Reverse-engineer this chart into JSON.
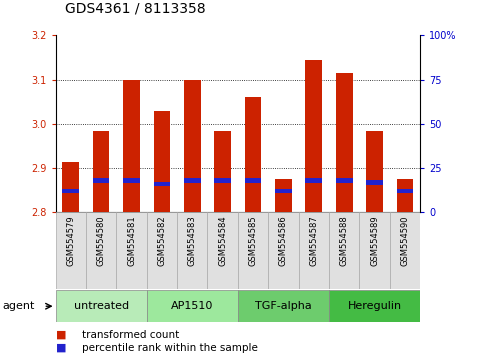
{
  "title": "GDS4361 / 8113358",
  "samples": [
    "GSM554579",
    "GSM554580",
    "GSM554581",
    "GSM554582",
    "GSM554583",
    "GSM554584",
    "GSM554585",
    "GSM554586",
    "GSM554587",
    "GSM554588",
    "GSM554589",
    "GSM554590"
  ],
  "red_values": [
    2.915,
    2.985,
    3.1,
    3.03,
    3.1,
    2.985,
    3.06,
    2.875,
    3.145,
    3.115,
    2.985,
    2.875
  ],
  "blue_pct": [
    12,
    18,
    18,
    16,
    18,
    18,
    18,
    12,
    18,
    18,
    17,
    12
  ],
  "ymin": 2.8,
  "ymax": 3.2,
  "y_ticks": [
    2.8,
    2.9,
    3.0,
    3.1,
    3.2
  ],
  "right_ticks": [
    0,
    25,
    50,
    75,
    100
  ],
  "right_tick_labels": [
    "0",
    "25",
    "50",
    "75",
    "100%"
  ],
  "groups": [
    {
      "label": "untreated",
      "start": 0,
      "end": 3
    },
    {
      "label": "AP1510",
      "start": 3,
      "end": 6
    },
    {
      "label": "TGF-alpha",
      "start": 6,
      "end": 9
    },
    {
      "label": "Heregulin",
      "start": 9,
      "end": 12
    }
  ],
  "group_colors": [
    "#b8ebb8",
    "#9de89d",
    "#6dcc6d",
    "#44bb44"
  ],
  "bar_color_red": "#CC2200",
  "bar_color_blue": "#2222CC",
  "bar_width": 0.55,
  "xlabel_color": "#CC2200",
  "right_label_color": "#0000CC",
  "agent_label": "agent",
  "legend_red": "transformed count",
  "legend_blue": "percentile rank within the sample",
  "title_fontsize": 10,
  "tick_fontsize": 7,
  "sample_fontsize": 6,
  "group_fontsize": 8,
  "legend_fontsize": 7.5
}
